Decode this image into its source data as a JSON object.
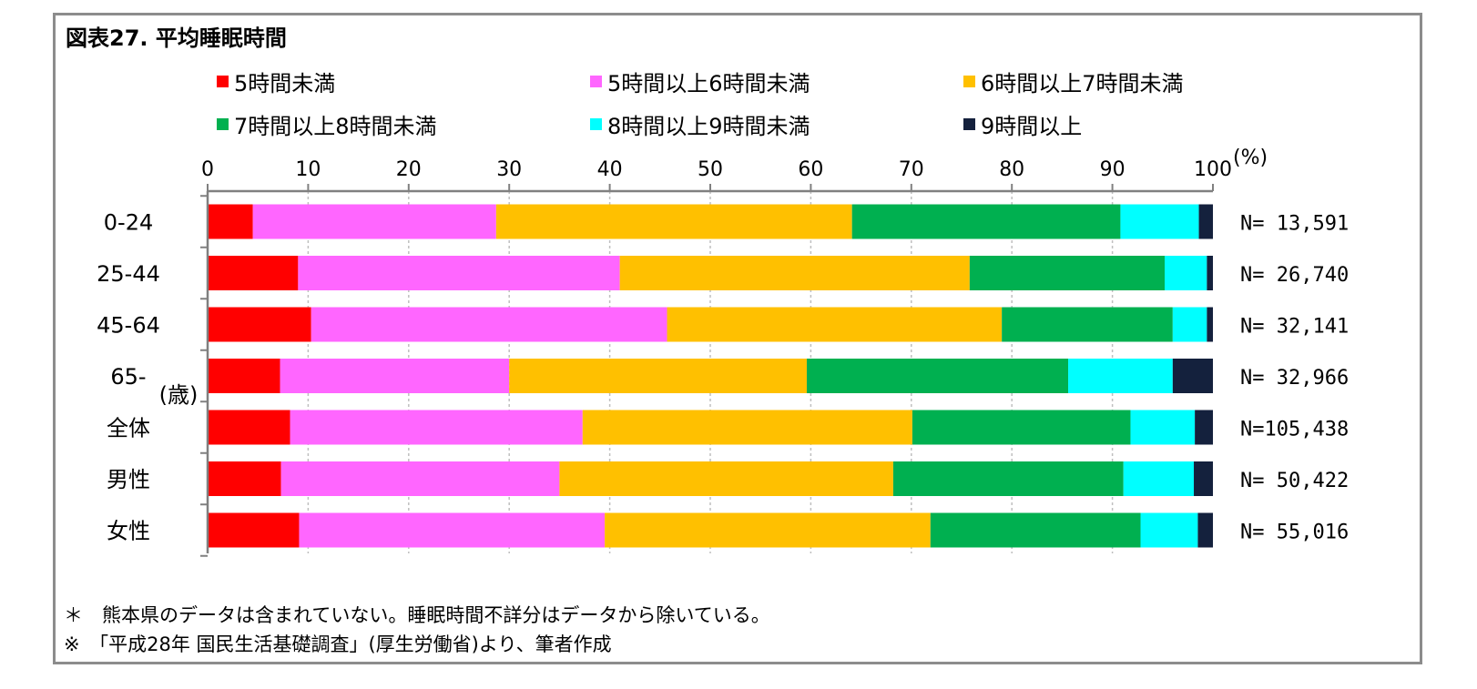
{
  "chart_data": {
    "type": "bar",
    "orientation": "horizontal",
    "stacked": true,
    "title": "図表27. 平均睡眠時間",
    "unit_label": "(%)",
    "xlim": [
      0,
      100
    ],
    "x_ticks": [
      "0",
      "10",
      "20",
      "30",
      "40",
      "50",
      "60",
      "70",
      "80",
      "90",
      "100"
    ],
    "grid": true,
    "legend_position": "top",
    "categories": [
      "0-24",
      "25-44",
      "45-64",
      "65-",
      "全体",
      "男性",
      "女性"
    ],
    "category_unit": "(歳)",
    "n_labels": [
      "N= 13,591",
      "N= 26,740",
      "N= 32,141",
      "N= 32,966",
      "N=105,438",
      "N= 50,422",
      "N= 55,016"
    ],
    "series": [
      {
        "name": "5時間未満",
        "color": "#ff0000",
        "values": [
          4.5,
          9.0,
          10.3,
          7.2,
          8.2,
          7.3,
          9.1
        ]
      },
      {
        "name": "5時間以上6時間未満",
        "color": "#ff66ff",
        "values": [
          24.2,
          32.0,
          35.4,
          22.8,
          29.1,
          27.7,
          30.4
        ]
      },
      {
        "name": "6時間以上7時間未満",
        "color": "#ffc000",
        "values": [
          35.4,
          34.8,
          33.3,
          29.6,
          32.8,
          33.2,
          32.4
        ]
      },
      {
        "name": "7時間以上8時間未満",
        "color": "#00b050",
        "values": [
          26.7,
          19.4,
          17.0,
          26.0,
          21.7,
          22.9,
          20.9
        ]
      },
      {
        "name": "8時間以上9時間未満",
        "color": "#00ffff",
        "values": [
          7.8,
          4.2,
          3.4,
          10.4,
          6.4,
          7.0,
          5.7
        ]
      },
      {
        "name": "9時間以上",
        "color": "#14213d",
        "values": [
          1.4,
          0.6,
          0.6,
          4.0,
          1.8,
          1.9,
          1.5
        ]
      }
    ]
  },
  "notes": [
    "＊　熊本県のデータは含まれていない。睡眠時間不詳分はデータから除いている。",
    "※　「平成28年 国民生活基礎調査」(厚生労働省)より、筆者作成"
  ]
}
